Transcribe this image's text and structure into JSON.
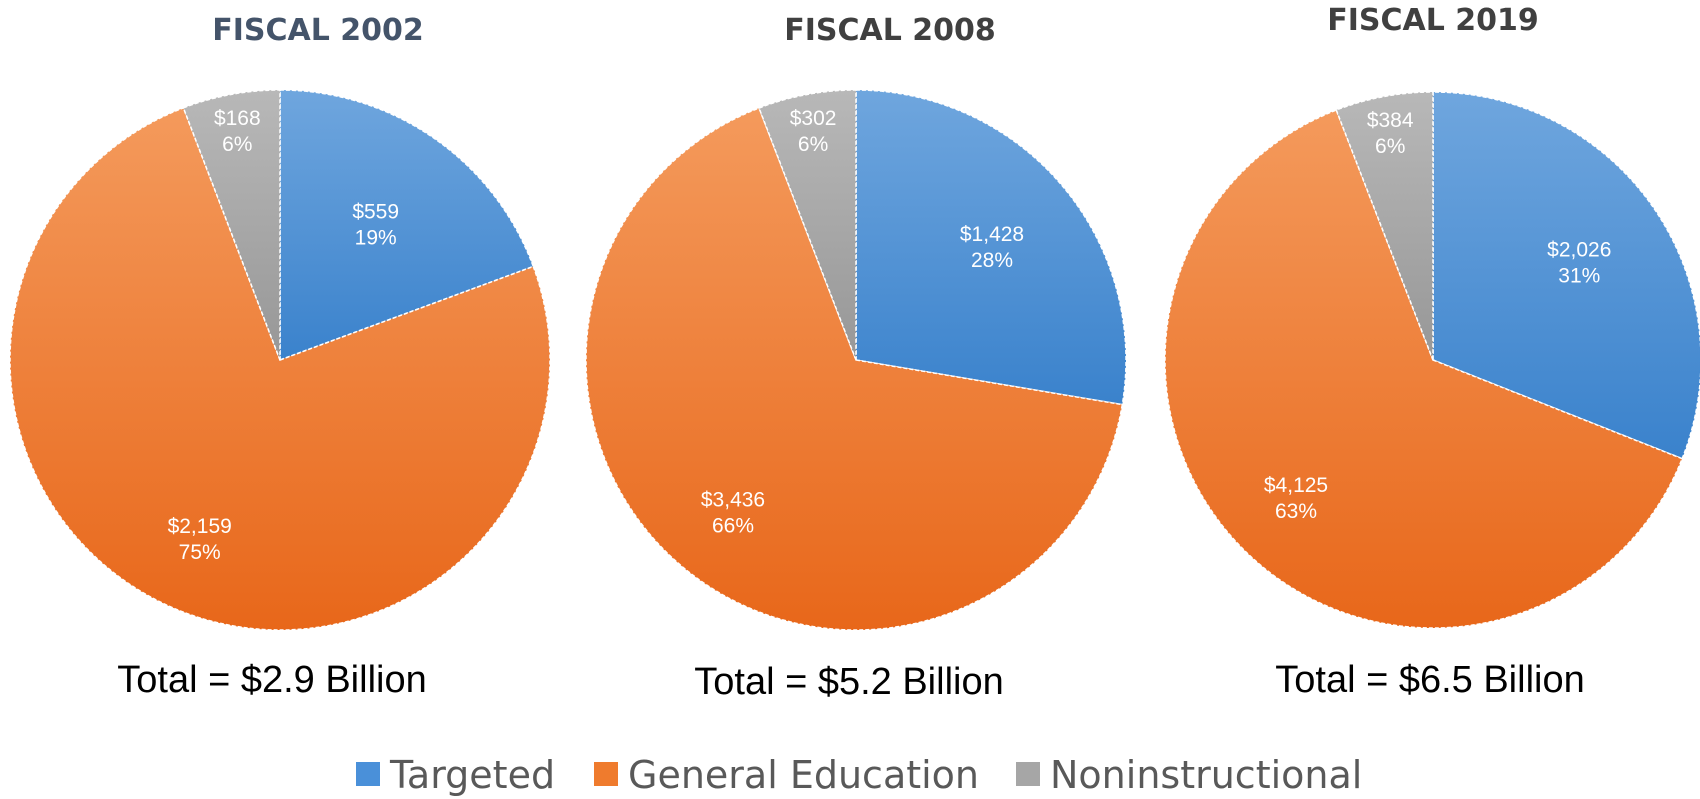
{
  "chart_data": [
    {
      "type": "pie",
      "title": "FISCAL 2002",
      "categories": [
        "Targeted",
        "General Education",
        "Noninstructional"
      ],
      "values": [
        559,
        2159,
        168
      ],
      "value_labels": [
        "$559",
        "$2,159",
        "$168"
      ],
      "percent_labels": [
        "19%",
        "75%",
        "6%"
      ],
      "total_label": "Total = $2.9 Billion"
    },
    {
      "type": "pie",
      "title": "FISCAL 2008",
      "categories": [
        "Targeted",
        "General Education",
        "Noninstructional"
      ],
      "values": [
        1428,
        3436,
        302
      ],
      "value_labels": [
        "$1,428",
        "$3,436",
        "$302"
      ],
      "percent_labels": [
        "28%",
        "66%",
        "6%"
      ],
      "total_label": "Total = $5.2 Billion"
    },
    {
      "type": "pie",
      "title": "FISCAL 2019",
      "categories": [
        "Targeted",
        "General Education",
        "Noninstructional"
      ],
      "values": [
        2026,
        4125,
        384
      ],
      "value_labels": [
        "$2,026",
        "$4,125",
        "$384"
      ],
      "percent_labels": [
        "31%",
        "63%",
        "6%"
      ],
      "total_label": "Total = $6.5 Billion"
    }
  ],
  "legend": {
    "placement": "bottom",
    "items": [
      {
        "label": "Targeted",
        "color": "#4a90d9"
      },
      {
        "label": "General Education",
        "color": "#ef7b2d"
      },
      {
        "label": "Noninstructional",
        "color": "#a6a6a6"
      }
    ]
  },
  "colors": {
    "targeted": "#4a90d9",
    "general_education": "#ef7b2d",
    "noninstructional": "#a6a6a6",
    "title_first": "#44546a",
    "title_other": "#404040"
  }
}
